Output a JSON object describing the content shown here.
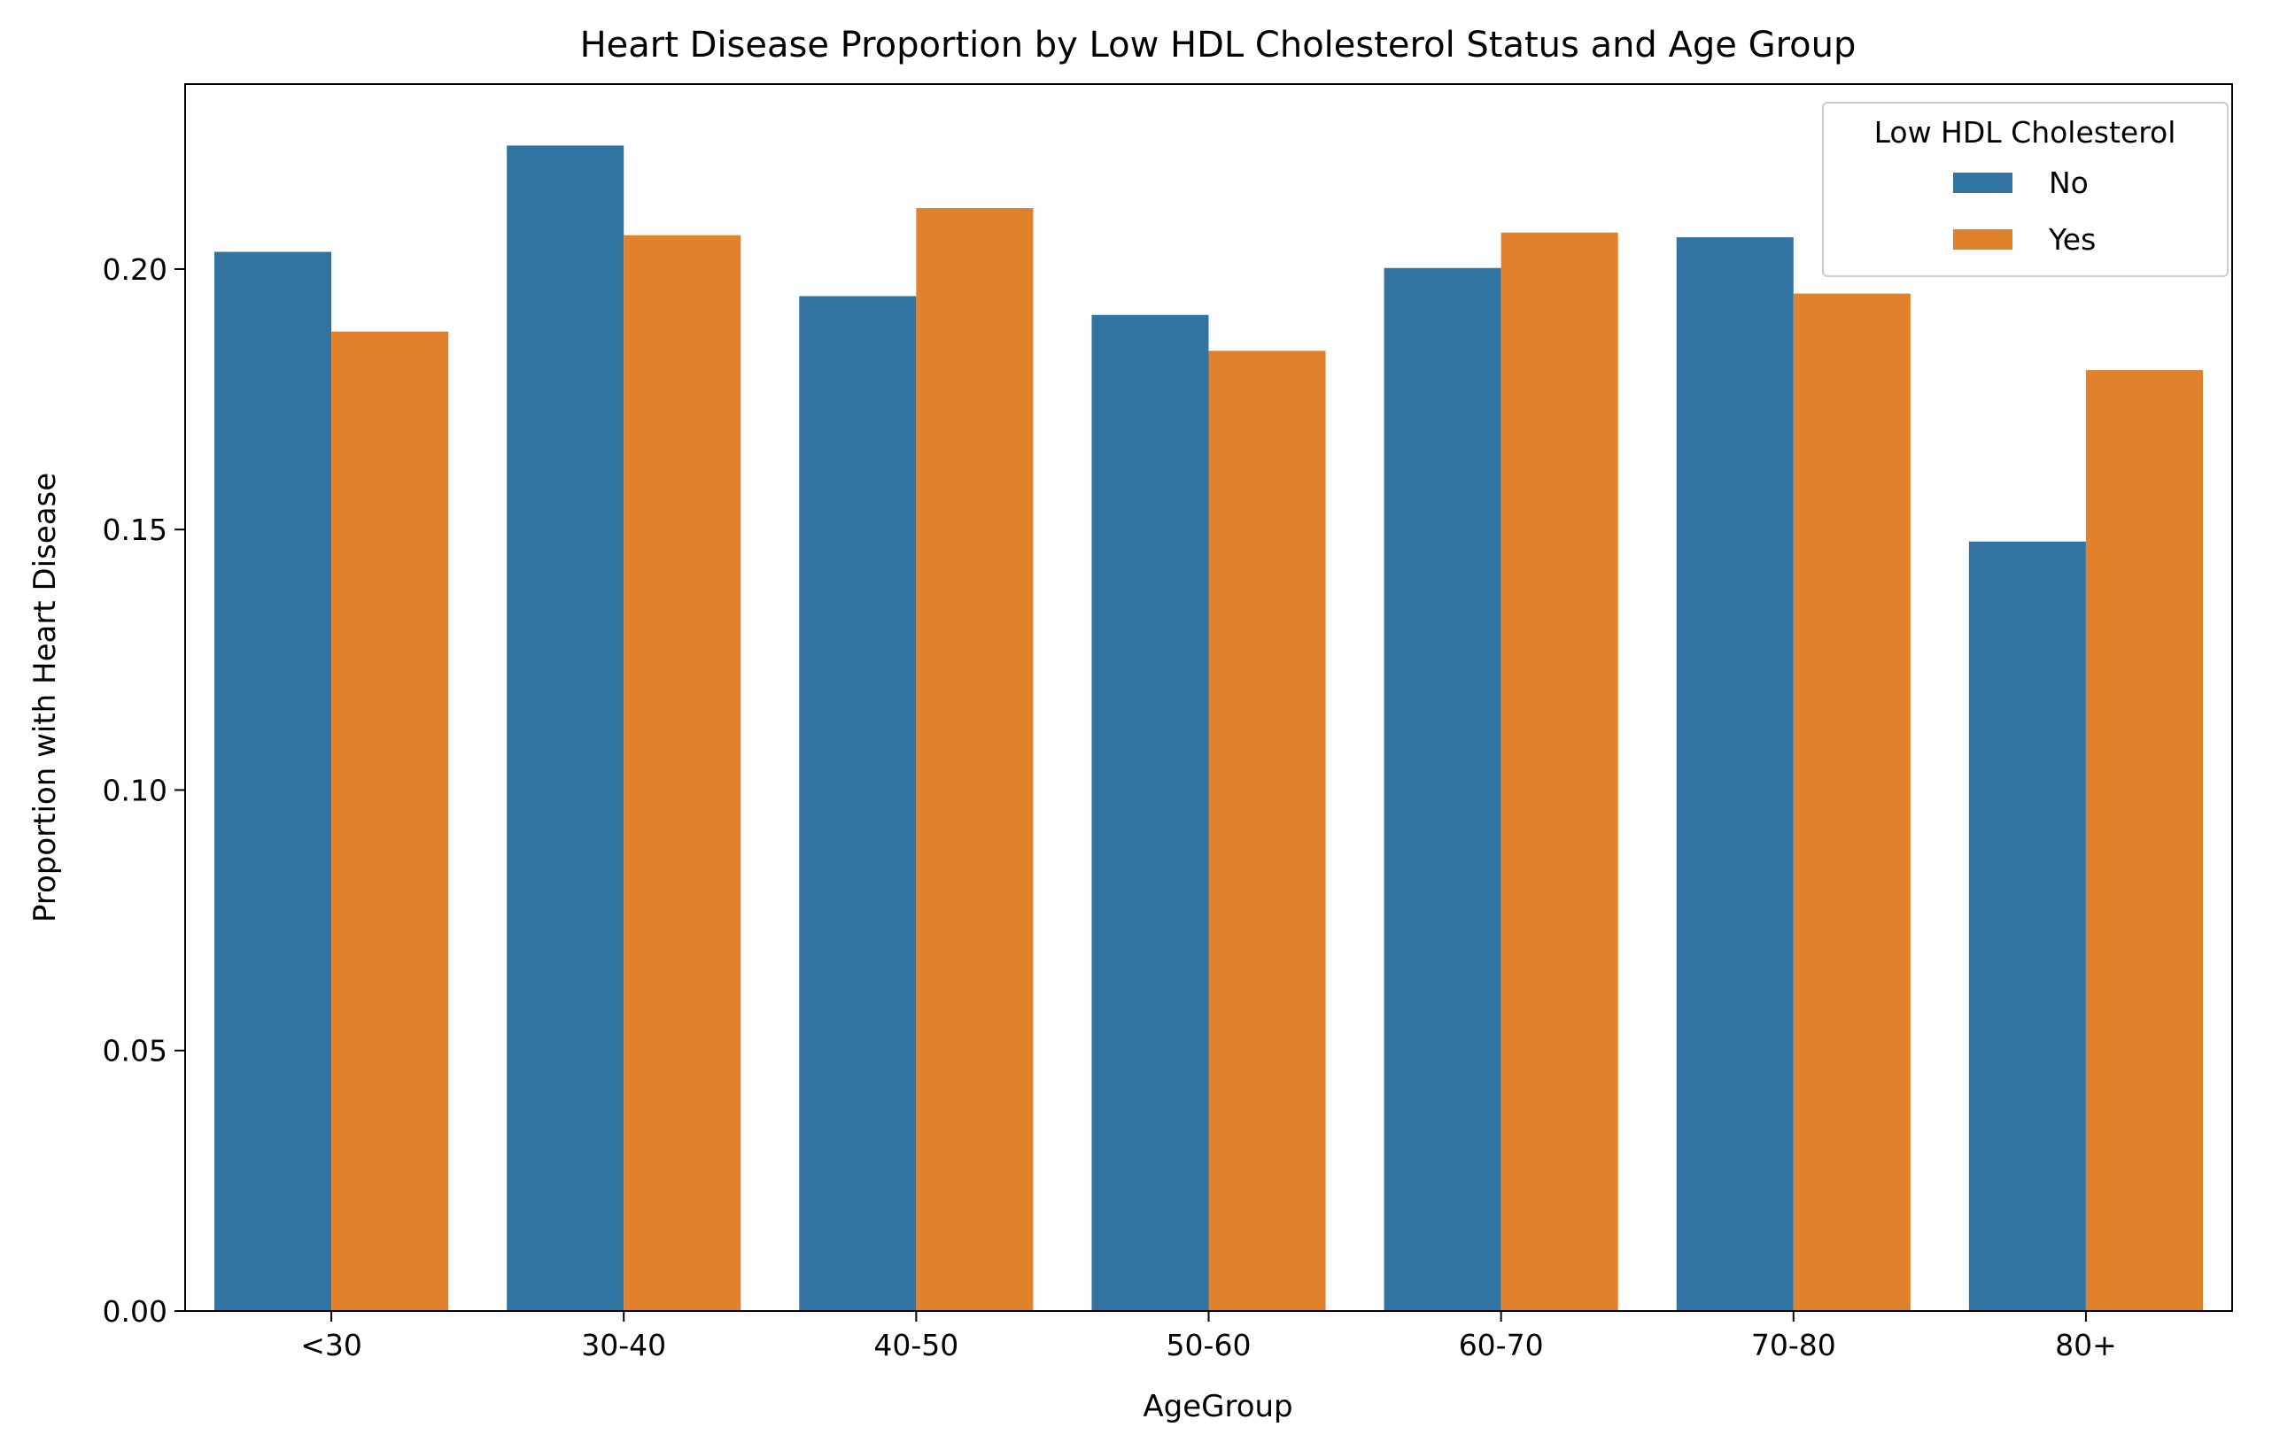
{
  "chart_data": {
    "type": "bar",
    "title": "Heart Disease Proportion by Low HDL Cholesterol Status and Age Group",
    "xlabel": "AgeGroup",
    "ylabel": "Proportion with Heart Disease",
    "categories": [
      "<30",
      "30-40",
      "40-50",
      "50-60",
      "60-70",
      "70-80",
      "80+"
    ],
    "series": [
      {
        "name": "No",
        "color": "#3274a1",
        "values": [
          0.2033,
          0.2237,
          0.1948,
          0.1912,
          0.2002,
          0.2061,
          0.1477
        ]
      },
      {
        "name": "Yes",
        "color": "#e1812c",
        "values": [
          0.188,
          0.2065,
          0.2117,
          0.1843,
          0.207,
          0.1953,
          0.1806
        ]
      }
    ],
    "ylim": [
      0,
      0.2355
    ],
    "yticks": [
      "0.00",
      "0.05",
      "0.10",
      "0.15",
      "0.20"
    ],
    "legend": {
      "title": "Low HDL Cholesterol",
      "position": "top-right"
    },
    "grid": false
  }
}
